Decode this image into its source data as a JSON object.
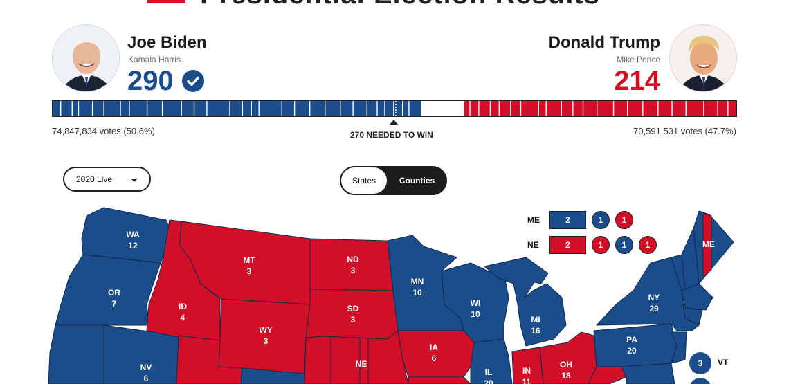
{
  "page": {
    "title": "Presidential Election Results"
  },
  "colors": {
    "dem": "#1b4d8b",
    "rep": "#d20f26",
    "tossup": "#ffffff"
  },
  "candidates": {
    "dem": {
      "name": "Joe Biden",
      "running_mate": "Kamala Harris",
      "electoral_votes": "290",
      "winner": true,
      "votes_text": "74,847,834 votes (50.6%)"
    },
    "rep": {
      "name": "Donald Trump",
      "running_mate": "Mike Pence",
      "electoral_votes": "214",
      "winner": false,
      "votes_text": "70,591,531 votes (47.7%)"
    }
  },
  "ev_bar": {
    "total": 538,
    "dem": 290,
    "rep": 214,
    "uncalled": 34,
    "threshold_label": "270 NEEDED TO WIN"
  },
  "controls": {
    "year_select": {
      "selected": "2020 Live"
    },
    "view_toggle": {
      "options": [
        "States",
        "Counties"
      ],
      "active": "Counties"
    }
  },
  "map": {
    "states": [
      {
        "abbr": "WA",
        "ev": "12",
        "party": "dem"
      },
      {
        "abbr": "OR",
        "ev": "7",
        "party": "dem"
      },
      {
        "abbr": "ID",
        "ev": "4",
        "party": "rep"
      },
      {
        "abbr": "MT",
        "ev": "3",
        "party": "rep"
      },
      {
        "abbr": "WY",
        "ev": "3",
        "party": "rep"
      },
      {
        "abbr": "ND",
        "ev": "3",
        "party": "rep"
      },
      {
        "abbr": "SD",
        "ev": "3",
        "party": "rep"
      },
      {
        "abbr": "MN",
        "ev": "10",
        "party": "dem"
      },
      {
        "abbr": "WI",
        "ev": "10",
        "party": "dem"
      },
      {
        "abbr": "MI",
        "ev": "16",
        "party": "dem"
      },
      {
        "abbr": "IA",
        "ev": "6",
        "party": "rep"
      },
      {
        "abbr": "NV",
        "ev": "6",
        "party": "dem"
      },
      {
        "abbr": "NE",
        "ev": "",
        "party": "rep"
      },
      {
        "abbr": "IL",
        "ev": "20",
        "party": "dem"
      },
      {
        "abbr": "IN",
        "ev": "11",
        "party": "rep"
      },
      {
        "abbr": "OH",
        "ev": "18",
        "party": "rep"
      },
      {
        "abbr": "PA",
        "ev": "20",
        "party": "dem"
      },
      {
        "abbr": "NY",
        "ev": "29",
        "party": "dem"
      },
      {
        "abbr": "ME",
        "ev": "",
        "party": "dem"
      }
    ],
    "split_states": [
      {
        "abbr": "ME",
        "at_large": {
          "ev": "2",
          "party": "dem"
        },
        "districts": [
          {
            "ev": "1",
            "party": "dem"
          },
          {
            "ev": "1",
            "party": "rep"
          }
        ]
      },
      {
        "abbr": "NE",
        "at_large": {
          "ev": "2",
          "party": "rep"
        },
        "districts": [
          {
            "ev": "1",
            "party": "rep"
          },
          {
            "ev": "1",
            "party": "dem"
          },
          {
            "ev": "1",
            "party": "rep"
          }
        ]
      }
    ],
    "small_states": [
      {
        "abbr": "VT",
        "ev": "3",
        "party": "dem"
      }
    ]
  }
}
